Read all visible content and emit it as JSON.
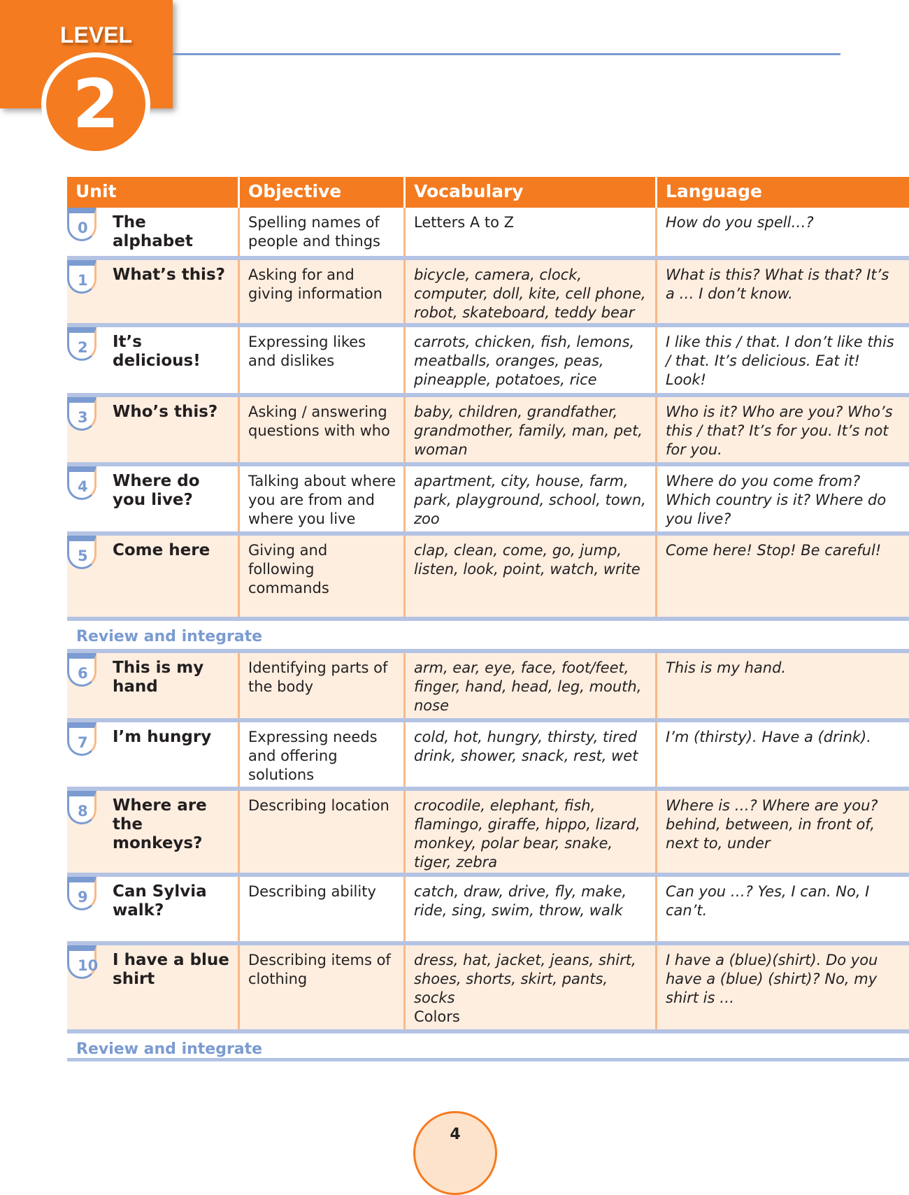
{
  "level": {
    "label": "LEVEL",
    "number": "2"
  },
  "headers": [
    "Unit",
    "Objective",
    "Vocabulary",
    "Language"
  ],
  "rows": [
    {
      "num": "0",
      "unit": "The alphabet",
      "objective": "Spelling names of people and things",
      "vocab": "Letters A to Z",
      "language": "How do you spell…?",
      "shade": "white",
      "vocab_italic": false
    },
    {
      "num": "1",
      "unit": "What’s this?",
      "objective": "Asking for and giving information",
      "vocab": "bicycle, camera, clock, computer, doll, kite, cell phone, robot, skateboard, teddy bear",
      "language": "What is this? What is that? It’s a … I don’t know.",
      "shade": "peach",
      "vocab_italic": true
    },
    {
      "num": "2",
      "unit": "It’s delicious!",
      "objective": "Expressing likes and dislikes",
      "vocab": "carrots, chicken, fish, lemons, meatballs, oranges, peas, pineapple, potatoes, rice",
      "language": "I like this / that. I don’t like this / that. It’s delicious. Eat it! Look!",
      "shade": "white",
      "vocab_italic": true
    },
    {
      "num": "3",
      "unit": "Who’s this?",
      "objective": "Asking / answering questions with who",
      "vocab": "baby, children, grandfather, grandmother, family, man, pet, woman",
      "language": "Who is it? Who are you? Who’s this / that? It’s for you. It’s not for you.",
      "shade": "peach",
      "vocab_italic": true
    },
    {
      "num": "4",
      "unit": "Where do you live?",
      "objective": "Talking about where you are from and where you live",
      "vocab": "apartment, city, house, farm, park, playground, school, town, zoo",
      "language": "Where do you come from? Which country is it? Where do you live?",
      "shade": "white",
      "vocab_italic": true
    },
    {
      "num": "5",
      "unit": "Come here",
      "objective": "Giving and following commands",
      "vocab": "clap, clean, come, go, jump, listen, look, point, watch, write",
      "language": "Come here! Stop! Be careful!",
      "shade": "peach",
      "vocab_italic": true
    },
    {
      "num": "6",
      "unit": "This is my hand",
      "objective": "Identifying parts of the body",
      "vocab": "arm, ear, eye, face, foot/feet, finger, hand, head, leg, mouth, nose",
      "language": "This is my hand.",
      "shade": "peach",
      "vocab_italic": true
    },
    {
      "num": "7",
      "unit": "I’m hungry",
      "objective": "Expressing needs and offering solutions",
      "vocab": "cold, hot, hungry, thirsty, tired drink, shower, snack, rest, wet",
      "language": "I’m (thirsty). Have a (drink).",
      "shade": "white",
      "vocab_italic": true
    },
    {
      "num": "8",
      "unit": "Where are the monkeys?",
      "objective": "Describing location",
      "vocab": "crocodile, elephant, fish, flamingo, giraffe, hippo, lizard, monkey, polar bear, snake, tiger, zebra",
      "language": "Where is …? Where are you? behind, between, in front of, next to, under",
      "shade": "peach",
      "vocab_italic": true
    },
    {
      "num": "9",
      "unit": "Can Sylvia walk?",
      "objective": "Describing ability",
      "vocab": "catch, draw, drive, fly, make, ride, sing, swim, throw, walk",
      "language": "Can you …? Yes, I can. No, I can’t.",
      "shade": "white",
      "vocab_italic": true
    },
    {
      "num": "10",
      "unit": "I have a blue shirt",
      "objective": "Describing items of clothing",
      "vocab": "dress, hat, jacket, jeans, shirt, shoes, shorts, skirt, pants, socks",
      "vocab_extra": "Colors",
      "language": "I have a (blue)(shirt). Do you have a (blue) (shirt)? No, my shirt is …",
      "shade": "peach",
      "vocab_italic": true
    }
  ],
  "review_label": "Review and integrate",
  "page_number": "4",
  "colors": {
    "orange": "#f47b20",
    "blue": "#7b9bd1",
    "peach": "#fdeee0",
    "divider": "#b4c3e3"
  }
}
